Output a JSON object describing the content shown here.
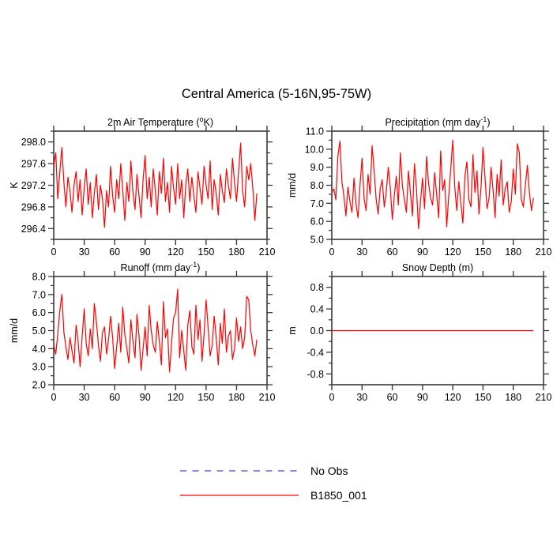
{
  "title": "Central America (5-16N,95-75W)",
  "colors": {
    "series_red": "#ff0000",
    "no_obs_blue": "#7878f0",
    "axis": "#3a3a3a",
    "text": "#000000"
  },
  "legend": {
    "items": [
      {
        "label": "No Obs",
        "style": "dashed",
        "color": "#7878f0"
      },
      {
        "label": "B1850_001",
        "style": "solid",
        "color": "#ff0000"
      }
    ]
  },
  "chart_data": [
    {
      "id": "2m-air-temperature",
      "type": "line",
      "title_pre": "2m Air Temperature (",
      "title_sup": "o",
      "title_post": "K)",
      "ylabel": "K",
      "xlabel": "",
      "grid": false,
      "xlim": [
        0,
        210
      ],
      "ylim": [
        296.2,
        298.2
      ],
      "xticks": [
        0,
        30,
        60,
        90,
        120,
        150,
        180,
        210
      ],
      "ymajor_start": 296.4,
      "ymajor_step": 0.4,
      "yminor_step": 0.2,
      "series": [
        {
          "name": "B1850_001",
          "color": "#ff0000",
          "x_start": 0,
          "x_step": 2,
          "values": [
            297.55,
            297.8,
            296.95,
            297.45,
            297.9,
            297.25,
            296.8,
            297.35,
            297.1,
            296.7,
            297.2,
            297.45,
            296.9,
            297.3,
            296.65,
            297.15,
            297.5,
            296.85,
            297.25,
            296.6,
            297.05,
            297.4,
            296.75,
            297.2,
            296.95,
            296.42,
            297.1,
            296.8,
            297.55,
            297.0,
            296.7,
            297.3,
            296.95,
            297.6,
            297.1,
            296.55,
            297.25,
            296.9,
            297.65,
            297.05,
            296.75,
            297.4,
            297.0,
            296.6,
            297.3,
            297.75,
            296.95,
            297.35,
            296.8,
            297.5,
            297.1,
            296.65,
            297.45,
            297.05,
            297.7,
            296.9,
            297.25,
            296.7,
            297.55,
            297.15,
            296.85,
            297.6,
            296.95,
            297.3,
            296.6,
            297.2,
            297.5,
            296.9,
            297.35,
            297.0,
            296.7,
            297.45,
            297.15,
            296.85,
            297.55,
            297.2,
            296.95,
            297.65,
            296.75,
            297.3,
            297.05,
            296.65,
            297.4,
            297.1,
            296.88,
            297.5,
            297.2,
            296.95,
            297.7,
            297.25,
            296.9,
            297.45,
            297.98,
            297.1,
            296.8,
            297.55,
            297.3,
            297.6,
            297.15,
            296.55,
            297.05
          ]
        }
      ]
    },
    {
      "id": "precipitation",
      "type": "line",
      "title_pre": "Precipitation (mm day",
      "title_sup": "-1",
      "title_post": ")",
      "ylabel": "mm/d",
      "xlabel": "",
      "grid": false,
      "xlim": [
        0,
        210
      ],
      "ylim": [
        5.0,
        11.0
      ],
      "xticks": [
        0,
        30,
        60,
        90,
        120,
        150,
        180,
        210
      ],
      "ymajor_start": 5.0,
      "ymajor_step": 1.0,
      "yminor_step": 0.5,
      "series": [
        {
          "name": "B1850_001",
          "color": "#ff0000",
          "x_start": 0,
          "x_step": 2,
          "values": [
            7.6,
            7.8,
            7.2,
            9.6,
            10.45,
            8.2,
            7.4,
            6.3,
            7.9,
            7.1,
            6.5,
            8.4,
            7.0,
            6.2,
            8.0,
            9.5,
            7.3,
            6.6,
            8.6,
            7.5,
            10.2,
            8.8,
            7.2,
            6.4,
            7.8,
            8.3,
            6.8,
            7.6,
            9.0,
            7.9,
            6.1,
            7.4,
            8.5,
            6.9,
            9.8,
            8.0,
            7.2,
            6.5,
            8.8,
            7.6,
            6.3,
            9.2,
            7.8,
            5.6,
            7.1,
            8.4,
            6.7,
            9.6,
            8.1,
            7.3,
            6.9,
            8.7,
            7.5,
            6.2,
            9.9,
            7.7,
            8.3,
            5.7,
            7.4,
            8.9,
            10.5,
            7.9,
            6.6,
            8.2,
            7.0,
            5.9,
            8.5,
            9.3,
            7.2,
            6.8,
            9.7,
            7.6,
            8.8,
            6.4,
            7.9,
            10.1,
            8.4,
            6.7,
            7.3,
            9.0,
            7.7,
            6.2,
            8.6,
            7.4,
            9.4,
            6.9,
            7.8,
            8.2,
            6.5,
            7.1,
            8.9,
            7.5,
            10.3,
            9.8,
            7.2,
            6.8,
            8.0,
            9.1,
            7.6,
            6.6,
            7.3
          ]
        }
      ]
    },
    {
      "id": "runoff",
      "type": "line",
      "title_pre": "Runoff (mm day",
      "title_sup": "-1",
      "title_post": ")",
      "ylabel": "mm/d",
      "xlabel": "",
      "grid": false,
      "xlim": [
        0,
        210
      ],
      "ylim": [
        2.0,
        8.0
      ],
      "xticks": [
        0,
        30,
        60,
        90,
        120,
        150,
        180,
        210
      ],
      "ymajor_start": 2.0,
      "ymajor_step": 1.0,
      "yminor_step": 0.5,
      "series": [
        {
          "name": "B1850_001",
          "color": "#ff0000",
          "x_start": 0,
          "x_step": 2,
          "values": [
            4.2,
            3.7,
            4.8,
            6.1,
            7.0,
            4.9,
            4.1,
            3.4,
            4.6,
            3.9,
            3.2,
            5.3,
            4.4,
            3.0,
            4.7,
            6.2,
            4.3,
            3.6,
            5.1,
            4.0,
            6.5,
            5.5,
            4.2,
            3.3,
            4.9,
            5.2,
            3.7,
            4.5,
            5.8,
            4.6,
            2.9,
            4.1,
            5.4,
            3.8,
            6.3,
            4.8,
            4.0,
            3.2,
            5.6,
            4.4,
            3.5,
            5.9,
            4.7,
            2.8,
            4.0,
            5.2,
            3.6,
            6.4,
            5.0,
            4.2,
            3.8,
            5.5,
            4.4,
            3.1,
            6.6,
            4.6,
            5.1,
            2.7,
            4.3,
            5.7,
            6.0,
            7.3,
            3.5,
            5.0,
            3.9,
            2.8,
            5.3,
            6.1,
            4.1,
            3.7,
            6.4,
            4.5,
            5.6,
            3.3,
            4.8,
            6.7,
            5.2,
            3.6,
            4.2,
            5.8,
            4.6,
            3.1,
            5.4,
            4.3,
            6.2,
            3.8,
            4.7,
            5.0,
            3.4,
            4.0,
            5.7,
            4.4,
            5.2,
            4.0,
            4.6,
            6.9,
            6.7,
            5.0,
            4.2,
            3.6,
            4.5
          ]
        }
      ]
    },
    {
      "id": "snow-depth",
      "type": "line",
      "title_pre": "Snow Depth (m)",
      "title_sup": "",
      "title_post": "",
      "ylabel": "m",
      "xlabel": "",
      "grid": false,
      "xlim": [
        0,
        210
      ],
      "ylim": [
        -1.0,
        1.0
      ],
      "xticks": [
        0,
        30,
        60,
        90,
        120,
        150,
        180,
        210
      ],
      "ymajor_start": -0.8,
      "ymajor_step": 0.4,
      "yminor_step": 0.2,
      "note": "constant zero line from x=0 to x=200",
      "series": [
        {
          "name": "B1850_001",
          "color": "#ff0000",
          "x_start": 0,
          "x_step": 200,
          "values": [
            0.0,
            0.0
          ]
        }
      ]
    }
  ]
}
